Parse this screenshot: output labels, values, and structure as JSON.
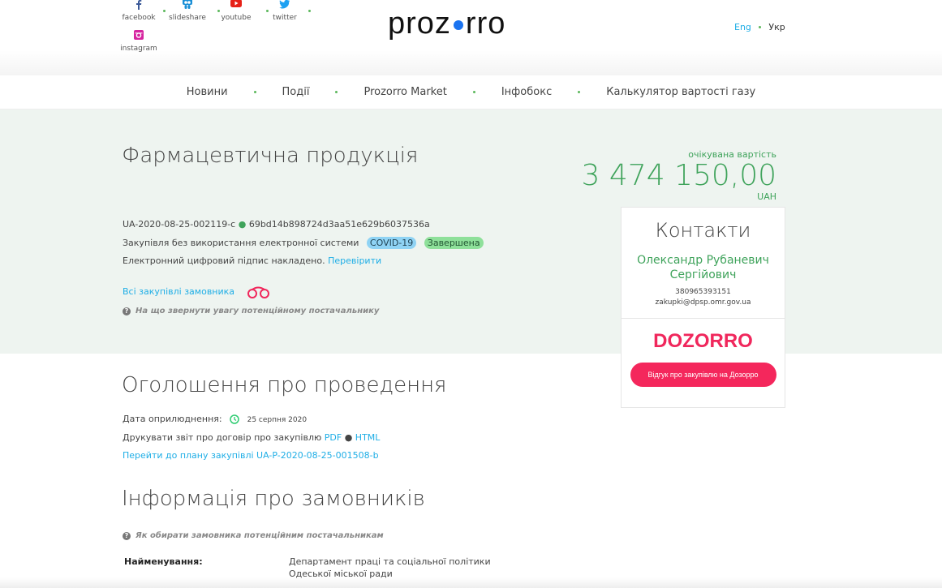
{
  "social": [
    {
      "label": "facebook",
      "icon": "facebook-icon",
      "color": "#3b5998"
    },
    {
      "label": "slideshare",
      "icon": "slideshare-icon",
      "color": "#1a8fd6"
    },
    {
      "label": "youtube",
      "icon": "youtube-icon",
      "color": "#e62117"
    },
    {
      "label": "twitter",
      "icon": "twitter-icon",
      "color": "#1da1f2"
    },
    {
      "label": "instagram",
      "icon": "instagram-icon",
      "color": "#d6249f"
    }
  ],
  "logo": {
    "left": "proz",
    "right": "rro"
  },
  "lang": {
    "eng": "Eng",
    "ukr": "Укр"
  },
  "nav": [
    "Новини",
    "Події",
    "Prozorro Market",
    "Інфобокс",
    "Калькулятор вартості газу"
  ],
  "tender": {
    "title": "Фармацевтична продукція",
    "id": "UA-2020-08-25-002119-c",
    "hash": "69bd14b898724d3aa51e629b6037536a",
    "method": "Закупівля без використання електронної системи",
    "badges": [
      {
        "label": "COVID-19",
        "color": "#8fd3f4"
      },
      {
        "label": "Завершена",
        "color": "#8ee09a"
      }
    ],
    "signature": "Електронний цифровий підпис накладено.",
    "verify": "Перевірити",
    "all_link": "Всі закупівлі замовника",
    "hint": "На що звернути увагу потенційному постачальнику"
  },
  "price": {
    "label": "очікувана вартість",
    "value": "3 474 150,00",
    "currency": "UAH"
  },
  "contacts": {
    "title": "Контакти",
    "name": "Олександр Рубаневич Сергійович",
    "phone": "380965393151",
    "email": "zakupki@dpsp.omr.gov.ua",
    "dozorro_logo": "DOZORRO",
    "dozorro_button": "Відгук про закупівлю на Дозорро"
  },
  "announcement": {
    "title": "Оголошення про проведення",
    "date_label": "Дата оприлюднення:",
    "date": "25 серпня 2020",
    "print_label": "Друкувати звіт про договір про закупівлю",
    "pdf": "PDF",
    "html": "HTML",
    "plan_link": "Перейти до плану закупівлі UA-P-2020-08-25-001508-b"
  },
  "buyers": {
    "title": "Інформація про замовників",
    "hint": "Як обирати замовника потенційним постачальникам",
    "name_label": "Найменування:",
    "name_value": "Департамент праці та соціальної політики Одеської міської ради"
  }
}
